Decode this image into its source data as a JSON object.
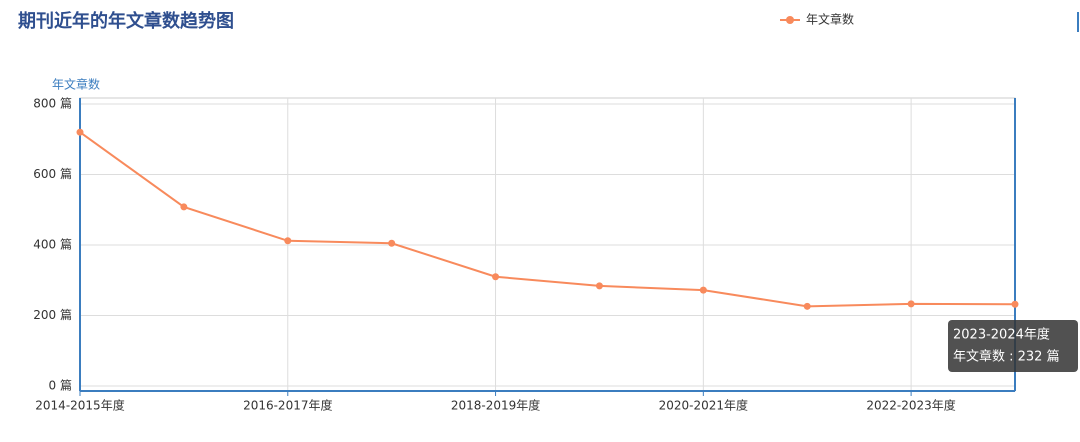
{
  "chart_data": {
    "type": "line",
    "title": "期刊近年的年文章数趋势图",
    "y_label": "年文章数",
    "categories": [
      "2014-2015年度",
      null,
      "2016-2017年度",
      null,
      "2018-2019年度",
      null,
      "2020-2021年度",
      null,
      "2022-2023年度",
      null
    ],
    "series": [
      {
        "name": "年文章数",
        "color": "#f88a5c",
        "values": [
          720,
          508,
          412,
          405,
          310,
          284,
          272,
          226,
          233,
          232
        ]
      }
    ],
    "ylim": [
      0,
      800
    ],
    "yticks": [
      {
        "value": 0,
        "label": "0 篇"
      },
      {
        "value": 200,
        "label": "200 篇"
      },
      {
        "value": 400,
        "label": "400 篇"
      },
      {
        "value": 600,
        "label": "600 篇"
      },
      {
        "value": 800,
        "label": "800 篇"
      }
    ],
    "grid": true,
    "tooltip": {
      "title": "2023-2024年度",
      "text": "年文章数 : 232 篇"
    }
  }
}
